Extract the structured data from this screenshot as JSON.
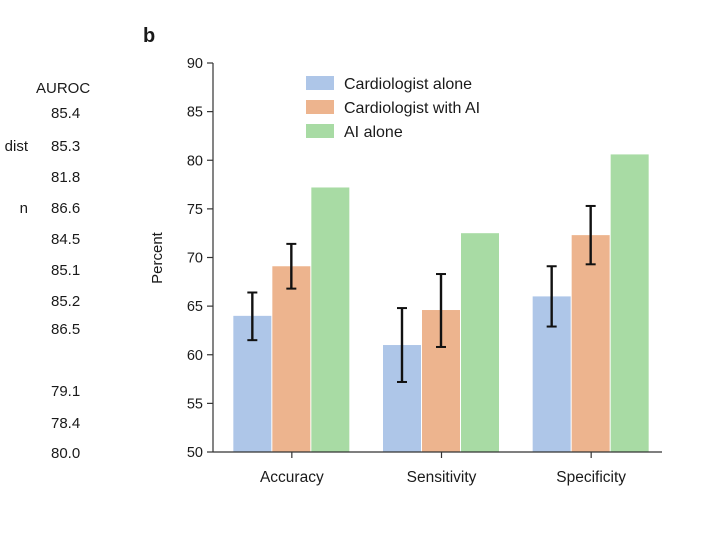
{
  "panel_label": "b",
  "left_table": {
    "header": "AUROC",
    "values": [
      "85.4",
      "85.3",
      "81.8",
      "86.6",
      "84.5",
      "85.1",
      "85.2",
      "86.5",
      "79.1",
      "78.4",
      "80.0"
    ],
    "fragments": [
      {
        "text": "dist",
        "row": 1
      },
      {
        "text": "n",
        "row": 3
      }
    ]
  },
  "chart_data": {
    "type": "bar",
    "title": "",
    "xlabel": "",
    "ylabel": "Percent",
    "ylim": [
      50,
      90
    ],
    "yticks": [
      50,
      55,
      60,
      65,
      70,
      75,
      80,
      85,
      90
    ],
    "categories": [
      "Accuracy",
      "Sensitivity",
      "Specificity"
    ],
    "legend_position": "top-left",
    "series": [
      {
        "name": "Cardiologist alone",
        "color": "#aec6e8",
        "values": [
          64.0,
          61.0,
          66.0
        ],
        "error_low": [
          61.5,
          57.2,
          62.9
        ],
        "error_high": [
          66.4,
          64.8,
          69.1
        ]
      },
      {
        "name": "Cardiologist with AI",
        "color": "#edb48e",
        "values": [
          69.1,
          64.6,
          72.3
        ],
        "error_low": [
          66.8,
          60.8,
          69.3
        ],
        "error_high": [
          71.4,
          68.3,
          75.3
        ]
      },
      {
        "name": "AI alone",
        "color": "#a8dba4",
        "values": [
          77.2,
          72.5,
          80.6
        ],
        "error_low": null,
        "error_high": null
      }
    ]
  }
}
